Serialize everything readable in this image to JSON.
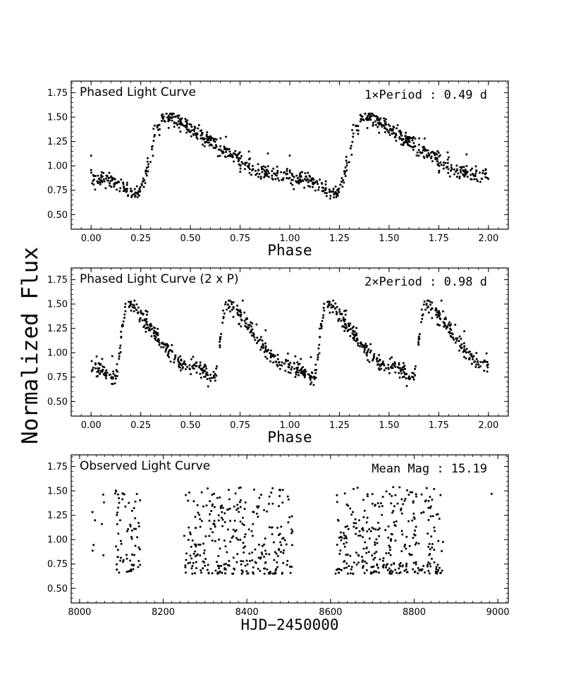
{
  "ylabel": "Normalized Flux",
  "chart_data": [
    {
      "type": "scatter",
      "title": "Phased Light Curve",
      "annotation": "1×Period : 0.49 d",
      "xlabel": "Phase",
      "xlim": [
        -0.1,
        2.1
      ],
      "ylim": [
        0.35,
        1.87
      ],
      "xticks": [
        "0.00",
        "0.25",
        "0.50",
        "0.75",
        "1.00",
        "1.25",
        "1.50",
        "1.75",
        "2.00"
      ],
      "yticks": [
        "0.50",
        "0.75",
        "1.00",
        "1.25",
        "1.50",
        "1.75"
      ],
      "period_multiple": 1,
      "template_phase": [
        0.0,
        0.08,
        0.15,
        0.2,
        0.25,
        0.28,
        0.32,
        0.36,
        0.4,
        0.45,
        0.5,
        0.6,
        0.7,
        0.8,
        0.9,
        1.0
      ],
      "template_flux": [
        0.87,
        0.86,
        0.8,
        0.74,
        0.74,
        0.95,
        1.3,
        1.5,
        1.52,
        1.45,
        1.38,
        1.25,
        1.12,
        0.98,
        0.91,
        0.87
      ],
      "scatter_sigma": 0.04,
      "n_points": 430
    },
    {
      "type": "scatter",
      "title": "Phased Light Curve (2 x P)",
      "annotation": "2×Period : 0.98 d",
      "xlabel": "Phase",
      "xlim": [
        -0.1,
        2.1
      ],
      "ylim": [
        0.35,
        1.87
      ],
      "xticks": [
        "0.00",
        "0.25",
        "0.50",
        "0.75",
        "1.00",
        "1.25",
        "1.50",
        "1.75",
        "2.00"
      ],
      "yticks": [
        "0.50",
        "0.75",
        "1.00",
        "1.25",
        "1.50",
        "1.75"
      ],
      "period_multiple": 2,
      "scatter_sigma": 0.04,
      "n_points": 430
    },
    {
      "type": "scatter",
      "title": "Observed Light Curve",
      "annotation": "Mean Mag :  15.19",
      "xlabel": "HJD−2450000",
      "xlim": [
        7980,
        9025
      ],
      "ylim": [
        0.35,
        1.87
      ],
      "xticks": [
        "8000",
        "8200",
        "8400",
        "8600",
        "8800",
        "9000"
      ],
      "yticks": [
        "0.50",
        "0.75",
        "1.00",
        "1.25",
        "1.50",
        "1.75"
      ],
      "observing_seasons": [
        [
          8030,
          8060,
          8
        ],
        [
          8085,
          8145,
          70
        ],
        [
          8250,
          8510,
          300
        ],
        [
          8612,
          8870,
          320
        ],
        [
          8985,
          8985,
          1
        ]
      ],
      "flux_range": [
        0.65,
        1.54
      ]
    }
  ]
}
